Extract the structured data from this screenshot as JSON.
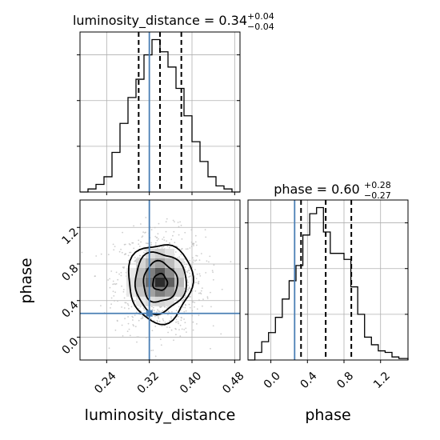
{
  "chart_data": [
    {
      "panel": "marginal",
      "parameter": "luminosity_distance",
      "type": "histogram",
      "title": {
        "main": "luminosity_distance = 0.34",
        "upper": "+0.04",
        "lower": "−0.04"
      },
      "xlim": [
        0.19,
        0.49
      ],
      "ylim": [
        0,
        1.05
      ],
      "grid": true,
      "bins": [
        {
          "x0": 0.19,
          "x1": 0.205,
          "count": 0.0
        },
        {
          "x0": 0.205,
          "x1": 0.22,
          "count": 0.02
        },
        {
          "x0": 0.22,
          "x1": 0.235,
          "count": 0.05
        },
        {
          "x0": 0.235,
          "x1": 0.25,
          "count": 0.1
        },
        {
          "x0": 0.25,
          "x1": 0.265,
          "count": 0.26
        },
        {
          "x0": 0.265,
          "x1": 0.28,
          "count": 0.45
        },
        {
          "x0": 0.28,
          "x1": 0.295,
          "count": 0.62
        },
        {
          "x0": 0.295,
          "x1": 0.31,
          "count": 0.74
        },
        {
          "x0": 0.31,
          "x1": 0.325,
          "count": 0.9
        },
        {
          "x0": 0.325,
          "x1": 0.34,
          "count": 1.0
        },
        {
          "x0": 0.34,
          "x1": 0.355,
          "count": 0.92
        },
        {
          "x0": 0.355,
          "x1": 0.37,
          "count": 0.82
        },
        {
          "x0": 0.37,
          "x1": 0.385,
          "count": 0.68
        },
        {
          "x0": 0.385,
          "x1": 0.4,
          "count": 0.5
        },
        {
          "x0": 0.4,
          "x1": 0.415,
          "count": 0.33
        },
        {
          "x0": 0.415,
          "x1": 0.43,
          "count": 0.2
        },
        {
          "x0": 0.43,
          "x1": 0.445,
          "count": 0.1
        },
        {
          "x0": 0.445,
          "x1": 0.46,
          "count": 0.04
        },
        {
          "x0": 0.46,
          "x1": 0.475,
          "count": 0.02
        },
        {
          "x0": 0.475,
          "x1": 0.49,
          "count": 0.0
        }
      ],
      "quantiles": [
        0.3,
        0.34,
        0.38
      ],
      "truth": 0.32,
      "yticks": [
        0.3,
        0.6,
        0.9
      ]
    },
    {
      "panel": "marginal",
      "parameter": "phase",
      "type": "histogram",
      "title": {
        "main": "phase = 0.60",
        "upper": "+0.28",
        "lower": "−0.27"
      },
      "xlim": [
        -0.25,
        1.5
      ],
      "ylim": [
        0,
        1.05
      ],
      "grid": true,
      "bins": [
        {
          "x0": -0.25,
          "x1": -0.175,
          "count": 0.0
        },
        {
          "x0": -0.175,
          "x1": -0.1,
          "count": 0.05
        },
        {
          "x0": -0.1,
          "x1": -0.025,
          "count": 0.12
        },
        {
          "x0": -0.025,
          "x1": 0.05,
          "count": 0.18
        },
        {
          "x0": 0.05,
          "x1": 0.125,
          "count": 0.28
        },
        {
          "x0": 0.125,
          "x1": 0.2,
          "count": 0.4
        },
        {
          "x0": 0.2,
          "x1": 0.275,
          "count": 0.52
        },
        {
          "x0": 0.275,
          "x1": 0.35,
          "count": 0.62
        },
        {
          "x0": 0.35,
          "x1": 0.425,
          "count": 0.82
        },
        {
          "x0": 0.425,
          "x1": 0.5,
          "count": 0.96
        },
        {
          "x0": 0.5,
          "x1": 0.575,
          "count": 1.0
        },
        {
          "x0": 0.575,
          "x1": 0.65,
          "count": 0.84
        },
        {
          "x0": 0.65,
          "x1": 0.725,
          "count": 0.7
        },
        {
          "x0": 0.725,
          "x1": 0.8,
          "count": 0.7
        },
        {
          "x0": 0.8,
          "x1": 0.875,
          "count": 0.66
        },
        {
          "x0": 0.875,
          "x1": 0.95,
          "count": 0.48
        },
        {
          "x0": 0.95,
          "x1": 1.025,
          "count": 0.3
        },
        {
          "x0": 1.025,
          "x1": 1.1,
          "count": 0.15
        },
        {
          "x0": 1.1,
          "x1": 1.175,
          "count": 0.1
        },
        {
          "x0": 1.175,
          "x1": 1.25,
          "count": 0.06
        },
        {
          "x0": 1.25,
          "x1": 1.325,
          "count": 0.05
        },
        {
          "x0": 1.325,
          "x1": 1.4,
          "count": 0.02
        },
        {
          "x0": 1.4,
          "x1": 1.5,
          "count": 0.01
        }
      ],
      "quantiles": [
        0.33,
        0.6,
        0.88
      ],
      "truth": 0.26,
      "yticks": [
        0.3,
        0.6,
        0.9
      ],
      "xticks": [
        0.0,
        0.4,
        0.8,
        1.2
      ],
      "xtick_labels": [
        "0.0",
        "0.4",
        "0.8",
        "1.2"
      ],
      "xlabel": "phase"
    },
    {
      "panel": "joint",
      "type": "scatter",
      "x_parameter": "luminosity_distance",
      "y_parameter": "phase",
      "xlim": [
        0.19,
        0.49
      ],
      "ylim": [
        -0.25,
        1.5
      ],
      "grid": true,
      "center": {
        "x": 0.34,
        "y": 0.6
      },
      "spread": {
        "x": 0.04,
        "y": 0.27
      },
      "contours": [
        {
          "level": 1,
          "rx": 0.0135,
          "ry": 0.09
        },
        {
          "level": 2,
          "rx": 0.032,
          "ry": 0.22
        },
        {
          "level": 3,
          "rx": 0.048,
          "ry": 0.33
        },
        {
          "level": 4,
          "rx": 0.06,
          "ry": 0.43
        }
      ],
      "truth": {
        "x": 0.32,
        "y": 0.26
      },
      "xticks": [
        0.24,
        0.32,
        0.4,
        0.48
      ],
      "xtick_labels": [
        "0.24",
        "0.32",
        "0.40",
        "0.48"
      ],
      "yticks": [
        0.0,
        0.4,
        0.8,
        1.2
      ],
      "ytick_labels": [
        "0.0",
        "0.4",
        "0.8",
        "1.2"
      ],
      "xlabel": "luminosity_distance",
      "ylabel": "phase"
    }
  ],
  "colors": {
    "truth": "#4a7fb5",
    "line": "#000000",
    "grid": "#b0b0b0",
    "scatter": "#bdbdbd"
  }
}
